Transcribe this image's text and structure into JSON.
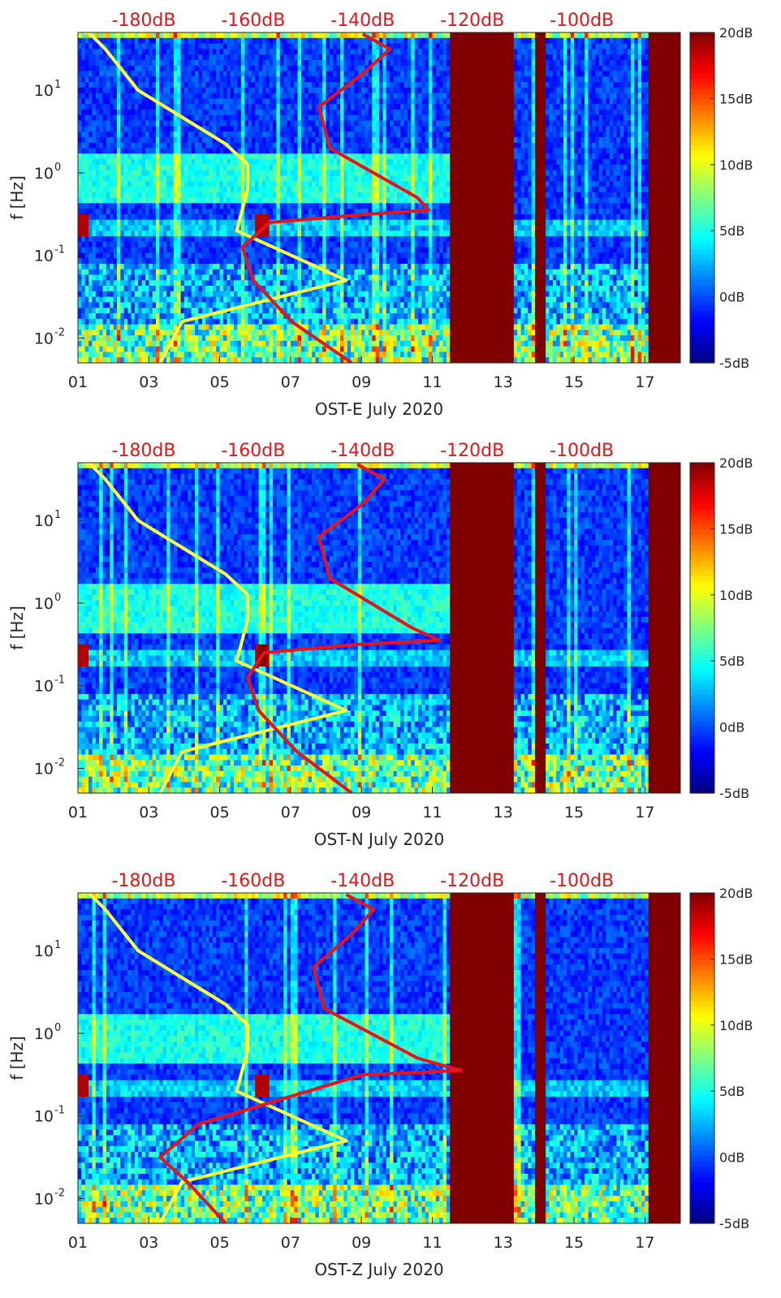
{
  "chart_data": [
    {
      "type": "heatmap",
      "station": "OST-E",
      "xlabel": "OST-E July 2020",
      "ylabel": "f [Hz]",
      "xlim": [
        1,
        18
      ],
      "ylim_log10": [
        -2.3,
        1.7
      ],
      "x_ticks": [
        {
          "v": 1,
          "label": "01"
        },
        {
          "v": 3,
          "label": "03"
        },
        {
          "v": 5,
          "label": "05"
        },
        {
          "v": 7,
          "label": "07"
        },
        {
          "v": 9,
          "label": "09"
        },
        {
          "v": 11,
          "label": "11"
        },
        {
          "v": 13,
          "label": "13"
        },
        {
          "v": 15,
          "label": "15"
        },
        {
          "v": 17,
          "label": "17"
        }
      ],
      "y_ticks": [
        {
          "exp": -2,
          "base": "10",
          "sup": "-2"
        },
        {
          "exp": -1,
          "base": "10",
          "sup": "-1"
        },
        {
          "exp": 0,
          "base": "10",
          "sup": "0"
        },
        {
          "exp": 1,
          "base": "10",
          "sup": "1"
        }
      ],
      "top_axis": {
        "labels": [
          "-180dB",
          "-160dB",
          "-140dB",
          "-120dB",
          "-100dB"
        ],
        "values": [
          -180,
          -160,
          -140,
          -120,
          -100
        ],
        "xlim_db": [
          -192,
          -82
        ]
      },
      "colorbar": {
        "labels": [
          "20dB",
          "15dB",
          "10dB",
          "5dB",
          "0dB",
          "-5dB"
        ],
        "values": [
          20,
          15,
          10,
          5,
          0,
          -5
        ],
        "range": [
          -5,
          20
        ]
      },
      "data_gaps_days": [
        [
          11.5,
          13.3
        ],
        [
          13.9,
          14.2
        ],
        [
          17.1,
          18
        ]
      ],
      "series": [
        {
          "name": "noise model (yellow)",
          "color": "#ffff3a",
          "dB": [
            -177,
            -173,
            -143,
            -153,
            -163,
            -161,
            -161,
            -165,
            -181,
            -187,
            -190,
            -191
          ],
          "log10f": [
            -2.3,
            -1.8,
            -1.3,
            -1.0,
            -0.7,
            -0.2,
            0.1,
            0.35,
            1.0,
            1.5,
            1.7,
            1.7
          ]
        },
        {
          "name": "PSD median (red)",
          "color": "#e8141a",
          "dB": [
            -142,
            -153,
            -160,
            -162,
            -157,
            -139,
            -128,
            -130,
            -146,
            -148,
            -140,
            -135,
            -140
          ],
          "log10f": [
            -2.3,
            -1.8,
            -1.3,
            -0.9,
            -0.6,
            -0.5,
            -0.45,
            -0.3,
            0.3,
            0.8,
            1.2,
            1.5,
            1.68
          ]
        }
      ]
    },
    {
      "type": "heatmap",
      "station": "OST-N",
      "xlabel": "OST-N July 2020",
      "ylabel": "f [Hz]",
      "xlim": [
        1,
        18
      ],
      "ylim_log10": [
        -2.3,
        1.7
      ],
      "x_ticks": [
        {
          "v": 1,
          "label": "01"
        },
        {
          "v": 3,
          "label": "03"
        },
        {
          "v": 5,
          "label": "05"
        },
        {
          "v": 7,
          "label": "07"
        },
        {
          "v": 9,
          "label": "09"
        },
        {
          "v": 11,
          "label": "11"
        },
        {
          "v": 13,
          "label": "13"
        },
        {
          "v": 15,
          "label": "15"
        },
        {
          "v": 17,
          "label": "17"
        }
      ],
      "y_ticks": [
        {
          "exp": -2,
          "base": "10",
          "sup": "-2"
        },
        {
          "exp": -1,
          "base": "10",
          "sup": "-1"
        },
        {
          "exp": 0,
          "base": "10",
          "sup": "0"
        },
        {
          "exp": 1,
          "base": "10",
          "sup": "1"
        }
      ],
      "top_axis": {
        "labels": [
          "-180dB",
          "-160dB",
          "-140dB",
          "-120dB",
          "-100dB"
        ],
        "values": [
          -180,
          -160,
          -140,
          -120,
          -100
        ],
        "xlim_db": [
          -192,
          -82
        ]
      },
      "colorbar": {
        "labels": [
          "20dB",
          "15dB",
          "10dB",
          "5dB",
          "0dB",
          "-5dB"
        ],
        "values": [
          20,
          15,
          10,
          5,
          0,
          -5
        ],
        "range": [
          -5,
          20
        ]
      },
      "data_gaps_days": [
        [
          11.5,
          13.3
        ],
        [
          13.9,
          14.2
        ],
        [
          17.1,
          18
        ]
      ],
      "series": [
        {
          "name": "noise model (yellow)",
          "color": "#ffff3a",
          "dB": [
            -177,
            -173,
            -143,
            -153,
            -163,
            -161,
            -161,
            -165,
            -181,
            -187,
            -190,
            -191
          ],
          "log10f": [
            -2.3,
            -1.8,
            -1.3,
            -1.0,
            -0.7,
            -0.2,
            0.1,
            0.35,
            1.0,
            1.5,
            1.7,
            1.7
          ]
        },
        {
          "name": "PSD median (red)",
          "color": "#e8141a",
          "dB": [
            -142,
            -152,
            -159,
            -161,
            -158,
            -141,
            -126,
            -131,
            -146,
            -148,
            -140,
            -136,
            -141
          ],
          "log10f": [
            -2.3,
            -1.8,
            -1.3,
            -0.9,
            -0.6,
            -0.5,
            -0.45,
            -0.3,
            0.3,
            0.8,
            1.2,
            1.5,
            1.68
          ]
        }
      ]
    },
    {
      "type": "heatmap",
      "station": "OST-Z",
      "xlabel": "OST-Z July 2020",
      "ylabel": "f [Hz]",
      "xlim": [
        1,
        18
      ],
      "ylim_log10": [
        -2.3,
        1.7
      ],
      "x_ticks": [
        {
          "v": 1,
          "label": "01"
        },
        {
          "v": 3,
          "label": "03"
        },
        {
          "v": 5,
          "label": "05"
        },
        {
          "v": 7,
          "label": "07"
        },
        {
          "v": 9,
          "label": "09"
        },
        {
          "v": 11,
          "label": "11"
        },
        {
          "v": 13,
          "label": "13"
        },
        {
          "v": 15,
          "label": "15"
        },
        {
          "v": 17,
          "label": "17"
        }
      ],
      "y_ticks": [
        {
          "exp": -2,
          "base": "10",
          "sup": "-2"
        },
        {
          "exp": -1,
          "base": "10",
          "sup": "-1"
        },
        {
          "exp": 0,
          "base": "10",
          "sup": "0"
        },
        {
          "exp": 1,
          "base": "10",
          "sup": "1"
        }
      ],
      "top_axis": {
        "labels": [
          "-180dB",
          "-160dB",
          "-140dB",
          "-120dB",
          "-100dB"
        ],
        "values": [
          -180,
          -160,
          -140,
          -120,
          -100
        ],
        "xlim_db": [
          -192,
          -82
        ]
      },
      "colorbar": {
        "labels": [
          "20dB",
          "15dB",
          "10dB",
          "5dB",
          "0dB",
          "-5dB"
        ],
        "values": [
          20,
          15,
          10,
          5,
          0,
          -5
        ],
        "range": [
          -5,
          20
        ]
      },
      "data_gaps_days": [
        [
          11.5,
          13.3
        ],
        [
          13.9,
          14.2
        ],
        [
          17.1,
          18
        ]
      ],
      "series": [
        {
          "name": "noise model (yellow)",
          "color": "#ffff3a",
          "dB": [
            -177,
            -173,
            -143,
            -153,
            -163,
            -161,
            -161,
            -165,
            -181,
            -187,
            -190,
            -191
          ],
          "log10f": [
            -2.3,
            -1.8,
            -1.3,
            -1.0,
            -0.7,
            -0.2,
            0.1,
            0.35,
            1.0,
            1.5,
            1.7,
            1.7
          ]
        },
        {
          "name": "PSD median (red)",
          "color": "#e8141a",
          "dB": [
            -165,
            -172,
            -177,
            -170,
            -155,
            -140,
            -122,
            -130,
            -147,
            -149,
            -142,
            -138,
            -143
          ],
          "log10f": [
            -2.3,
            -1.8,
            -1.5,
            -1.1,
            -0.8,
            -0.5,
            -0.45,
            -0.3,
            0.3,
            0.8,
            1.2,
            1.5,
            1.68
          ]
        }
      ]
    }
  ]
}
